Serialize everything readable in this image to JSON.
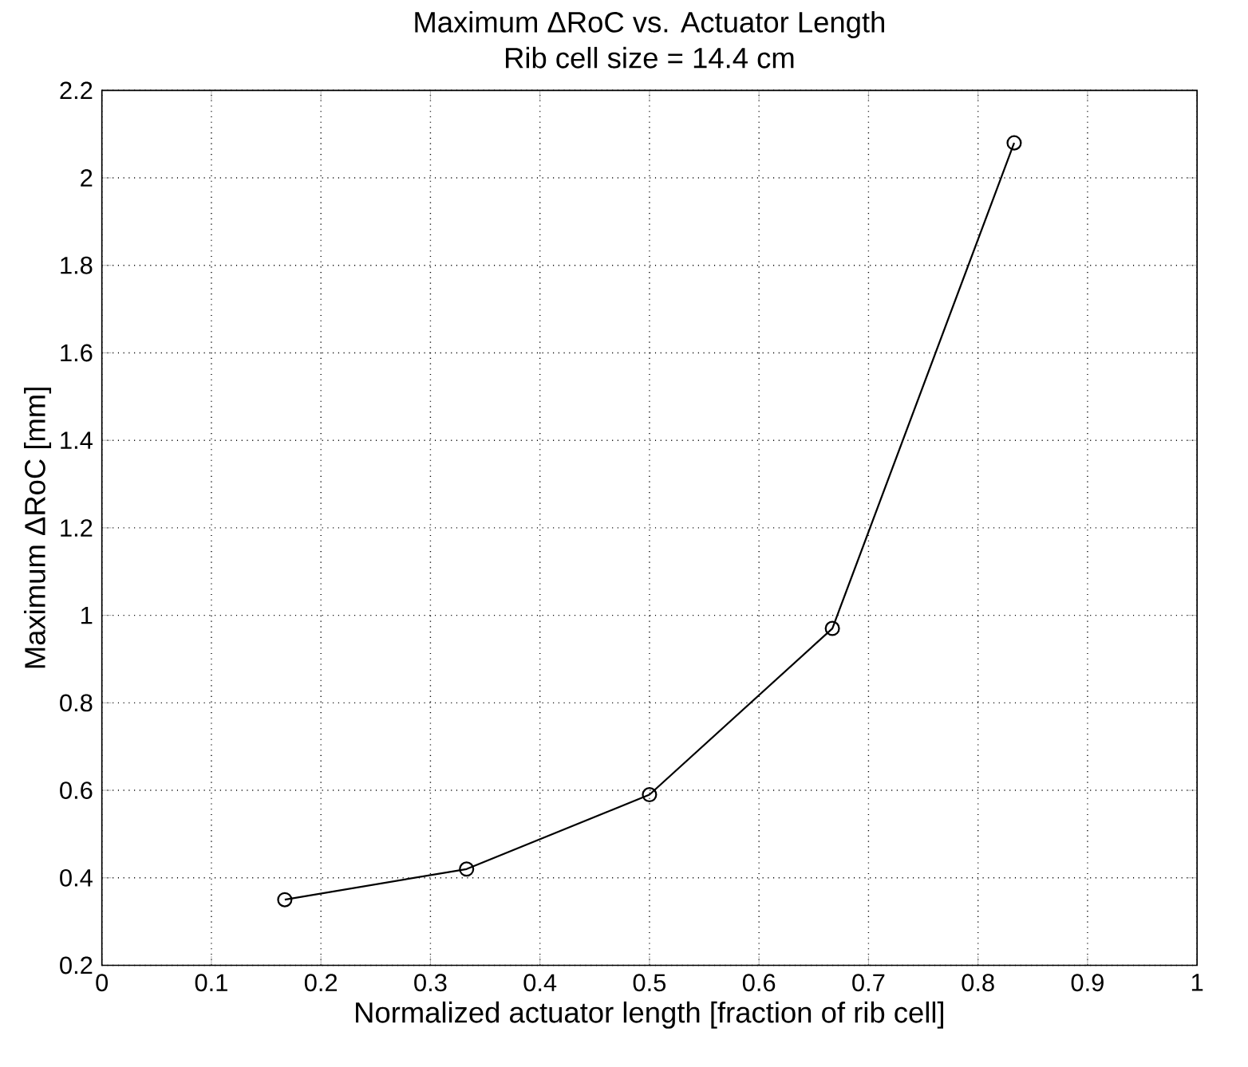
{
  "chart_data": {
    "type": "line",
    "title": "Maximum ΔRoC vs. Actuator Length",
    "subtitle": "Rib cell size = 14.4 cm",
    "xlabel": "Normalized actuator length [fraction of rib cell]",
    "ylabel": "Maximum ΔRoC [mm]",
    "x": [
      0.167,
      0.333,
      0.5,
      0.667,
      0.833
    ],
    "series": [
      {
        "color": "#000000",
        "values": [
          0.35,
          0.42,
          0.59,
          0.97,
          2.08
        ]
      }
    ],
    "xlim": [
      0,
      1
    ],
    "ylim": [
      0.2,
      2.2
    ],
    "xticks": [
      0,
      0.1,
      0.2,
      0.3,
      0.4,
      0.5,
      0.6,
      0.7,
      0.8,
      0.9,
      1
    ],
    "yticks": [
      0.2,
      0.4,
      0.6,
      0.8,
      1,
      1.2,
      1.4,
      1.6,
      1.8,
      2,
      2.2
    ],
    "grid": true,
    "marker": "circle",
    "line_style": "solid"
  }
}
